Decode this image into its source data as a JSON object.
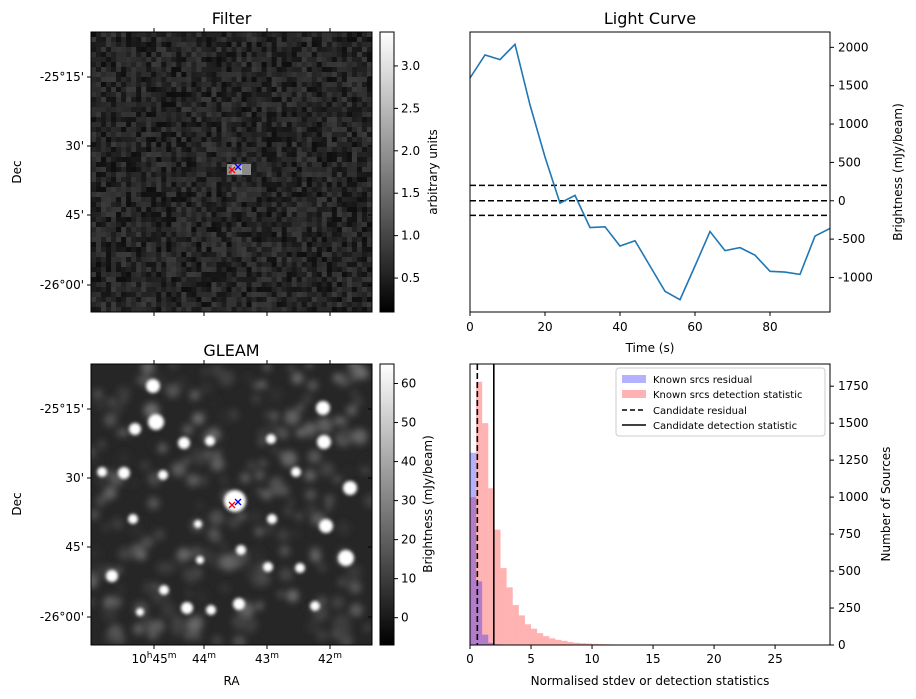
{
  "chart_data": [
    {
      "type": "heatmap",
      "title": "Filter",
      "ylabel": "Dec",
      "y_ticks": [
        "-25°15'",
        "30'",
        "45'",
        "-26°00'"
      ],
      "colorbar": {
        "label": "arbitrary units",
        "range": [
          0.1,
          3.4
        ],
        "ticks": [
          0.5,
          1.0,
          1.5,
          2.0,
          2.5,
          3.0
        ]
      },
      "markers": [
        {
          "label": "red x",
          "color": "#ff0000"
        },
        {
          "label": "blue x",
          "color": "#0000ff"
        }
      ]
    },
    {
      "type": "line",
      "title": "Light Curve",
      "xlabel": "Time (s)",
      "ylabel": "Brightness (mJy/beam)",
      "xlim": [
        0,
        96
      ],
      "ylim": [
        -1450,
        2200
      ],
      "x_ticks": [
        0,
        20,
        40,
        60,
        80
      ],
      "y_ticks": [
        -1000,
        -500,
        0,
        500,
        1000,
        1500,
        2000
      ],
      "hlines": [
        200,
        0,
        -190
      ],
      "series": [
        {
          "color": "#1f77b4",
          "x": [
            0,
            4,
            8,
            12,
            16,
            20,
            24,
            28,
            32,
            36,
            40,
            44,
            48,
            52,
            56,
            60,
            64,
            68,
            72,
            76,
            80,
            84,
            88,
            92,
            96
          ],
          "y": [
            1600,
            1900,
            1840,
            2040,
            1250,
            570,
            -30,
            70,
            -350,
            -340,
            -590,
            -520,
            -850,
            -1180,
            -1290,
            -850,
            -400,
            -650,
            -610,
            -710,
            -920,
            -930,
            -960,
            -460,
            -360
          ]
        }
      ]
    },
    {
      "type": "heatmap",
      "title": "GLEAM",
      "xlabel": "RA",
      "ylabel": "Dec",
      "y_ticks": [
        "-25°15'",
        "30'",
        "45'",
        "-26°00'"
      ],
      "x_ticks": [
        {
          "main": "10",
          "sup1": "h",
          "mid": "45",
          "sup2": "m"
        },
        {
          "main": "44",
          "sup1": "",
          "mid": "",
          "sup2": "m"
        },
        {
          "main": "43",
          "sup1": "",
          "mid": "",
          "sup2": "m"
        },
        {
          "main": "42",
          "sup1": "",
          "mid": "",
          "sup2": "m"
        }
      ],
      "colorbar": {
        "label": "Brightness (mJy/beam)",
        "range": [
          -7,
          65
        ],
        "ticks": [
          0,
          10,
          20,
          30,
          40,
          50,
          60
        ]
      },
      "markers": [
        {
          "label": "red x",
          "color": "#ff0000"
        },
        {
          "label": "blue x",
          "color": "#0000ff"
        }
      ]
    },
    {
      "type": "bar",
      "xlabel": "Normalised stdev or detection statistics",
      "ylabel": "Number of Sources",
      "xlim": [
        0,
        29.5
      ],
      "ylim": [
        0,
        1900
      ],
      "x_ticks": [
        0,
        5,
        10,
        15,
        20,
        25
      ],
      "y_ticks": [
        0,
        250,
        500,
        750,
        1000,
        1250,
        1500,
        1750
      ],
      "bin_width": 0.5,
      "series": [
        {
          "name": "Known srcs residual",
          "color": "#0000ff",
          "bin_start": 0,
          "counts": [
            1300,
            430,
            70,
            15,
            5,
            2
          ]
        },
        {
          "name": "Known srcs detection statistic",
          "color": "#ff0000",
          "bin_start": 0,
          "counts": [
            1000,
            1780,
            1500,
            1060,
            780,
            520,
            390,
            270,
            200,
            140,
            110,
            80,
            60,
            45,
            35,
            28,
            20,
            15,
            12,
            10,
            8,
            6,
            5,
            4,
            3,
            3,
            2,
            2,
            2,
            1,
            1,
            1,
            1,
            1,
            1,
            1,
            0,
            0,
            0,
            0,
            0,
            0,
            0,
            0,
            0,
            0,
            0,
            0,
            0,
            0,
            0,
            0,
            0,
            0,
            0,
            2
          ]
        }
      ],
      "vlines": [
        {
          "name": "Candidate residual",
          "x": 0.6,
          "style": "dashed"
        },
        {
          "name": "Candidate detection statistic",
          "x": 1.95,
          "style": "solid"
        }
      ]
    }
  ]
}
